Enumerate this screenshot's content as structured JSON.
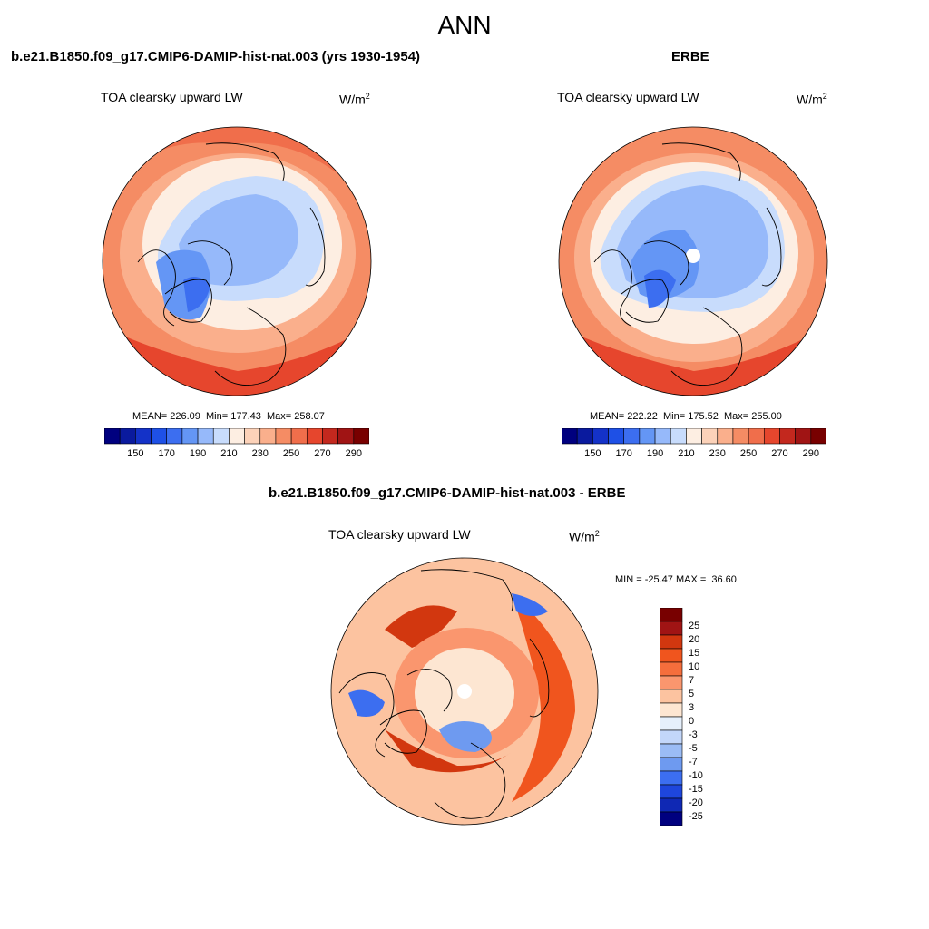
{
  "title": "ANN",
  "panels": [
    {
      "title": "b.e21.B1850.f09_g17.CMIP6-DAMIP-hist-nat.003 (yrs 1930-1954)",
      "variable": "TOA clearsky upward LW",
      "units_base": "W/m",
      "units_exp": "2",
      "stats": "MEAN= 226.09  Min= 177.43  Max= 258.07",
      "mean": 226.09,
      "min": 177.43,
      "max": 258.07
    },
    {
      "title": "ERBE",
      "variable": "TOA clearsky upward LW",
      "units_base": "W/m",
      "units_exp": "2",
      "stats": "MEAN= 222.22  Min= 175.52  Max= 255.00",
      "mean": 222.22,
      "min": 175.52,
      "max": 255.0
    },
    {
      "title": "b.e21.B1850.f09_g17.CMIP6-DAMIP-hist-nat.003 - ERBE",
      "variable": "TOA clearsky upward LW",
      "units_base": "W/m",
      "units_exp": "2",
      "stats": "MIN = -25.47 MAX =  36.60",
      "min": -25.47,
      "max": 36.6
    }
  ],
  "colorbar_abs": {
    "labels": [
      "150",
      "170",
      "190",
      "210",
      "230",
      "250",
      "270",
      "290"
    ],
    "colors": [
      "#00007f",
      "#0a1a9e",
      "#1432c8",
      "#1e50e6",
      "#3c6ef0",
      "#6496f5",
      "#96b9fa",
      "#c8dcfc",
      "#fdeee2",
      "#fcd2b9",
      "#faaf8c",
      "#f58c64",
      "#f06e4b",
      "#e6462d",
      "#c3281e",
      "#a01414",
      "#780000"
    ]
  },
  "colorbar_diff": {
    "labels": [
      "25",
      "20",
      "15",
      "10",
      "7",
      "5",
      "3",
      "0",
      "-3",
      "-5",
      "-7",
      "-10",
      "-15",
      "-20",
      "-25"
    ],
    "colors": [
      "#780000",
      "#a01414",
      "#d2370f",
      "#f0551e",
      "#f56e3c",
      "#fa966e",
      "#fcc3a0",
      "#fde6d2",
      "#e6f0fc",
      "#c3d7fa",
      "#9bbcf5",
      "#6e9af0",
      "#3c6ef0",
      "#1e46dc",
      "#0f28b4",
      "#00007f"
    ]
  },
  "colors": {
    "map_blue": "#7ea3ee",
    "map_deep_blue": "#3f6fe0",
    "map_light_blue": "#d6e6fc",
    "map_pale": "#fde4d2",
    "map_orange": "#f7a079",
    "map_red": "#e2542f"
  }
}
